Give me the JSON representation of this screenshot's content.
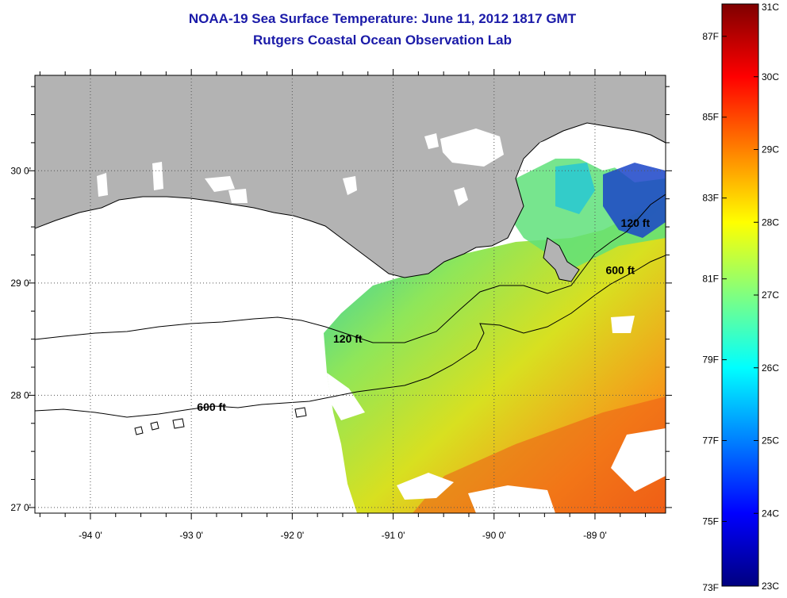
{
  "header": {
    "title_line1": "NOAA-19 Sea Surface Temperature:  June 11, 2012 1817 GMT",
    "title_line2": "Rutgers Coastal Ocean Observation Lab"
  },
  "map": {
    "lon_range": [
      -94.55,
      -88.3
    ],
    "lat_range": [
      26.95,
      30.85
    ],
    "x_ticks": [
      {
        "value": -94,
        "label": "-94 0'"
      },
      {
        "value": -93,
        "label": "-93 0'"
      },
      {
        "value": -92,
        "label": "-92 0'"
      },
      {
        "value": -91,
        "label": "-91 0'"
      },
      {
        "value": -90,
        "label": "-90 0'"
      },
      {
        "value": -89,
        "label": "-89 0'"
      }
    ],
    "y_ticks": [
      {
        "value": 30,
        "label": "30 0'"
      },
      {
        "value": 29,
        "label": "29 0'"
      },
      {
        "value": 28,
        "label": "28 0'"
      },
      {
        "value": 27,
        "label": "27 0'"
      }
    ],
    "grid": "dotted",
    "contour_labels": [
      {
        "text": "120 ft",
        "lon": -91.45,
        "lat": 28.47
      },
      {
        "text": "600 ft",
        "lon": -92.8,
        "lat": 27.86
      },
      {
        "text": "600 ft",
        "lon": -88.75,
        "lat": 29.08
      },
      {
        "text": "120 ft",
        "lon": -88.6,
        "lat": 29.5
      }
    ],
    "colors": {
      "land": "#b3b3b3",
      "cloud": "#ffffff",
      "coast": "#000000"
    }
  },
  "colorbar": {
    "f_labels": [
      {
        "value": 73,
        "label": "73F"
      },
      {
        "value": 75,
        "label": "75F"
      },
      {
        "value": 77,
        "label": "77F"
      },
      {
        "value": 79,
        "label": "79F"
      },
      {
        "value": 81,
        "label": "81F"
      },
      {
        "value": 83,
        "label": "83F"
      },
      {
        "value": 85,
        "label": "85F"
      },
      {
        "value": 87,
        "label": "87F"
      }
    ],
    "c_labels": [
      {
        "value": 23,
        "label": "23C"
      },
      {
        "value": 24,
        "label": "24C"
      },
      {
        "value": 25,
        "label": "25C"
      },
      {
        "value": 26,
        "label": "26C"
      },
      {
        "value": 27,
        "label": "27C"
      },
      {
        "value": 28,
        "label": "28C"
      },
      {
        "value": 29,
        "label": "29C"
      },
      {
        "value": 30,
        "label": "30C"
      },
      {
        "value": 31,
        "label": "31C"
      }
    ],
    "range_c": [
      23,
      31
    ],
    "stops": [
      "#00007f",
      "#0000ff",
      "#0080ff",
      "#00ffff",
      "#80ff80",
      "#ffff00",
      "#ff8000",
      "#ff0000",
      "#7f0000"
    ]
  }
}
